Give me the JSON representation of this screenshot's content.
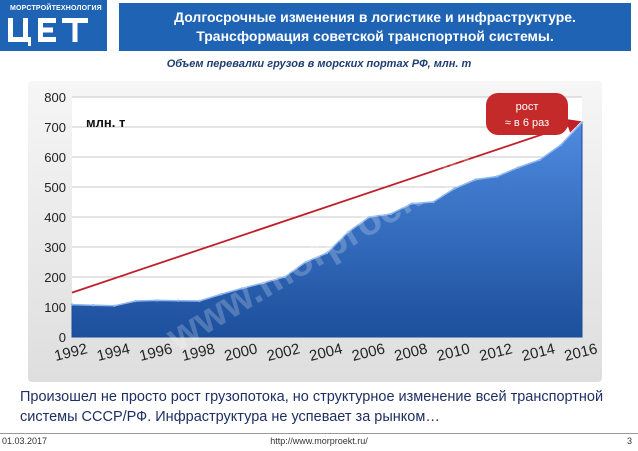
{
  "header": {
    "logo_brand": "МОРСТРОЙТЕХНОЛОГИЯ",
    "logo_mark": "ЦЕТ",
    "title_line1": "Долгосрочные изменения в логистике и инфраструктуре.",
    "title_line2": "Трансформация советской транспортной системы.",
    "brand_color": "#1f63b4"
  },
  "subtitle": "Объем перевалки грузов в морских портах РФ, млн. т",
  "chart_data": {
    "type": "area",
    "title": "Объем перевалки грузов в морских портах РФ, млн. т",
    "unit_label": "млн. т",
    "ylim": [
      0,
      800
    ],
    "y_ticks": [
      0,
      100,
      200,
      300,
      400,
      500,
      600,
      700,
      800
    ],
    "xlim": [
      1992,
      2016
    ],
    "x_ticks": [
      "1992",
      "1994",
      "1996",
      "1998",
      "2000",
      "2002",
      "2004",
      "2006",
      "2008",
      "2010",
      "2012",
      "2014",
      "2016"
    ],
    "grid": true,
    "series": [
      {
        "x": [
          1992,
          1993,
          1994,
          1995,
          1996,
          1997,
          1998,
          1999,
          2000,
          2001,
          2002,
          2003,
          2004,
          2005,
          2006,
          2007,
          2008,
          2009,
          2010,
          2011,
          2012,
          2013,
          2014,
          2015,
          2016
        ],
        "values": [
          108,
          106,
          104,
          120,
          122,
          121,
          120,
          142,
          162,
          180,
          200,
          250,
          280,
          350,
          400,
          410,
          445,
          450,
          495,
          525,
          535,
          565,
          590,
          640,
          715
        ],
        "color": "#2e6bc4"
      }
    ],
    "trend": {
      "from": [
        1992,
        148
      ],
      "to": [
        2016,
        722
      ],
      "color": "#c0202a"
    },
    "annotation": {
      "line1": "рост",
      "line2": "≈ в 6 раз",
      "color": "#c42a2a"
    },
    "watermark": "www.morproekt.ru"
  },
  "caption": "Произошел не просто рост грузопотока, но структурное изменение всей транспортной системы СССР/РФ. Инфраструктура не успевает за рынком…",
  "footer": {
    "date": "01.03.2017",
    "url": "http://www.morproekt.ru/",
    "page": "3"
  }
}
